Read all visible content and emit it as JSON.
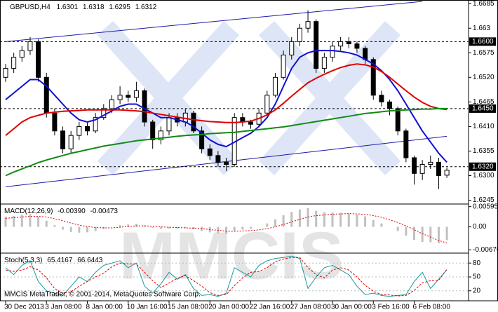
{
  "chart_data": [
    {
      "type": "candlestick",
      "title": "GBPUSD,H4",
      "watermark": "MMCIS",
      "categories": [
        "30 Dec 2013",
        null,
        null,
        null,
        null,
        "3 Jan 08:00",
        null,
        null,
        null,
        null,
        "8 Jan 00:00",
        null,
        null,
        null,
        null,
        "10 Jan 16:00",
        null,
        null,
        null,
        null,
        "15 Jan 08:00",
        null,
        null,
        null,
        null,
        "20 Jan 00:00",
        null,
        null,
        null,
        null,
        "22 Jan 16:00",
        null,
        null,
        null,
        null,
        "27 Jan 08:00",
        null,
        null,
        null,
        null,
        "30 Jan 00:00",
        null,
        null,
        null,
        null,
        "3 Feb 16:00",
        null,
        null,
        null,
        null,
        "6 Feb 08:00",
        null,
        null,
        null,
        null
      ],
      "open": [
        1.652,
        1.654,
        1.6565,
        1.658,
        1.66,
        1.652,
        1.644,
        1.64,
        1.636,
        1.639,
        1.641,
        1.64,
        1.643,
        1.645,
        1.647,
        1.648,
        1.6475,
        1.649,
        1.642,
        1.638,
        1.64,
        1.643,
        1.642,
        1.644,
        1.64,
        1.636,
        1.6345,
        1.633,
        1.6325,
        1.643,
        1.642,
        1.6415,
        1.644,
        1.648,
        1.652,
        1.657,
        1.66,
        1.663,
        1.6645,
        1.654,
        1.6565,
        1.659,
        1.66,
        1.6595,
        1.6585,
        1.656,
        1.648,
        1.6465,
        1.645,
        1.64,
        1.634,
        1.6305,
        1.6325,
        1.633,
        1.6301
      ],
      "high": [
        1.655,
        1.6575,
        1.659,
        1.661,
        1.6605,
        1.653,
        1.645,
        1.641,
        1.64,
        1.642,
        1.642,
        1.644,
        1.646,
        1.648,
        1.65,
        1.649,
        1.651,
        1.6495,
        1.6425,
        1.641,
        1.644,
        1.644,
        1.645,
        1.6445,
        1.641,
        1.637,
        1.6355,
        1.634,
        1.644,
        1.644,
        1.6425,
        1.645,
        1.649,
        1.653,
        1.658,
        1.661,
        1.664,
        1.667,
        1.665,
        1.6575,
        1.66,
        1.661,
        1.661,
        1.66,
        1.659,
        1.6565,
        1.649,
        1.647,
        1.6455,
        1.6405,
        1.6345,
        1.6335,
        1.6345,
        1.634,
        1.6318
      ],
      "low": [
        1.651,
        1.653,
        1.6555,
        1.657,
        1.651,
        1.643,
        1.639,
        1.635,
        1.635,
        1.638,
        1.639,
        1.6395,
        1.6425,
        1.644,
        1.646,
        1.6465,
        1.6465,
        1.641,
        1.636,
        1.637,
        1.639,
        1.641,
        1.641,
        1.6395,
        1.635,
        1.6335,
        1.632,
        1.631,
        1.632,
        1.641,
        1.6405,
        1.641,
        1.6435,
        1.6475,
        1.6515,
        1.656,
        1.659,
        1.662,
        1.653,
        1.653,
        1.6555,
        1.658,
        1.6585,
        1.6575,
        1.655,
        1.647,
        1.6455,
        1.6435,
        1.639,
        1.633,
        1.628,
        1.629,
        1.6315,
        1.627,
        1.6295
      ],
      "close": [
        1.654,
        1.6565,
        1.658,
        1.66,
        1.652,
        1.644,
        1.64,
        1.636,
        1.639,
        1.641,
        1.64,
        1.643,
        1.645,
        1.647,
        1.648,
        1.6475,
        1.649,
        1.642,
        1.638,
        1.64,
        1.643,
        1.642,
        1.644,
        1.64,
        1.636,
        1.6345,
        1.633,
        1.6325,
        1.643,
        1.642,
        1.6415,
        1.644,
        1.648,
        1.652,
        1.657,
        1.66,
        1.663,
        1.6645,
        1.654,
        1.6565,
        1.659,
        1.66,
        1.6595,
        1.6585,
        1.656,
        1.648,
        1.6465,
        1.645,
        1.64,
        1.634,
        1.6305,
        1.6325,
        1.633,
        1.63,
        1.6312
      ],
      "color_up": "#ffffff",
      "color_down": "#000000",
      "series": [
        {
          "color": "#1010d0",
          "values": [
            1.647,
            1.6485,
            1.65,
            1.6515,
            1.6515,
            1.65,
            1.648,
            1.646,
            1.644,
            1.6425,
            1.642,
            1.6425,
            1.6435,
            1.6445,
            1.6455,
            1.646,
            1.646,
            1.645,
            1.644,
            1.643,
            1.643,
            1.6425,
            1.642,
            1.641,
            1.6395,
            1.638,
            1.637,
            1.6365,
            1.6375,
            1.6385,
            1.6395,
            1.641,
            1.643,
            1.646,
            1.65,
            1.654,
            1.6565,
            1.6575,
            1.658,
            1.658,
            1.658,
            1.6578,
            1.6575,
            1.657,
            1.656,
            1.655,
            1.6535,
            1.6515,
            1.649,
            1.646,
            1.643,
            1.64,
            1.6375,
            1.635,
            1.633
          ]
        },
        {
          "color": "#e00000",
          "values": [
            1.639,
            1.6405,
            1.642,
            1.643,
            1.6435,
            1.644,
            1.6442,
            1.6444,
            1.6445,
            1.6446,
            1.6447,
            1.6447,
            1.6447,
            1.6447,
            1.6447,
            1.6446,
            1.6445,
            1.6443,
            1.644,
            1.6437,
            1.6434,
            1.6431,
            1.6428,
            1.6425,
            1.6423,
            1.6421,
            1.642,
            1.6419,
            1.6419,
            1.642,
            1.6422,
            1.6428,
            1.6436,
            1.6447,
            1.6462,
            1.6478,
            1.6493,
            1.6508,
            1.6518,
            1.6527,
            1.6535,
            1.6542,
            1.6547,
            1.655,
            1.6548,
            1.6543,
            1.6533,
            1.652,
            1.6505,
            1.649,
            1.6476,
            1.6464,
            1.6455,
            1.645,
            1.6448
          ]
        },
        {
          "color": "#138a13",
          "values": [
            1.63,
            1.6308,
            1.6315,
            1.6322,
            1.6329,
            1.6335,
            1.634,
            1.6345,
            1.635,
            1.6354,
            1.6358,
            1.6362,
            1.6366,
            1.6369,
            1.6372,
            1.6375,
            1.6378,
            1.638,
            1.6382,
            1.6384,
            1.6386,
            1.6388,
            1.639,
            1.6391,
            1.6392,
            1.6394,
            1.6395,
            1.6396,
            1.6397,
            1.6399,
            1.6401,
            1.6403,
            1.6405,
            1.6407,
            1.6409,
            1.6412,
            1.6415,
            1.6418,
            1.6421,
            1.6424,
            1.6427,
            1.643,
            1.6433,
            1.6436,
            1.6439,
            1.6441,
            1.6443,
            1.6445,
            1.6446,
            1.6447,
            1.6448,
            1.6449,
            1.6449,
            1.645,
            1.645
          ]
        }
      ],
      "levels": [
        {
          "value": 1.66,
          "label": "1.6600"
        },
        {
          "value": 1.645,
          "label": "1.6450"
        },
        {
          "value": 1.632,
          "label": "1.6320"
        }
      ],
      "trendlines": [
        {
          "color": "#1a1aa8",
          "x": [
            0,
            51
          ],
          "values": [
            1.66,
            1.669
          ]
        },
        {
          "color": "#1a1aa8",
          "x": [
            0,
            54
          ],
          "values": [
            1.6275,
            1.6388
          ]
        }
      ],
      "ylim": [
        1.6238,
        1.669
      ],
      "yticks": [
        1.6685,
        1.663,
        1.6575,
        {
          "value": 1.652,
          "label": "1.6520"
        },
        1.6465,
        {
          "value": 1.641,
          "label": "1.6410"
        },
        1.6355,
        {
          "value": 1.63,
          "label": "1.6300"
        },
        1.6245
      ]
    },
    {
      "type": "macd",
      "title": "MACD(12,26,9)",
      "series": [
        {
          "color": "#c0c0c0",
          "last_label": "-0.00390",
          "values": [
            0.003,
            0.0032,
            0.0035,
            0.0037,
            0.003,
            0.0018,
            0.0005,
            -0.0008,
            -0.0015,
            -0.0017,
            -0.0016,
            -0.0012,
            -0.0006,
            0.0,
            0.0005,
            0.0007,
            0.0009,
            0.0004,
            -0.0003,
            -0.0006,
            -0.0005,
            -0.0005,
            -0.0004,
            -0.0007,
            -0.0012,
            -0.0016,
            -0.0019,
            -0.0021,
            -0.0012,
            -0.0008,
            -0.0005,
            0.0,
            0.001,
            0.0022,
            0.0034,
            0.0044,
            0.0051,
            0.0055,
            0.0047,
            0.0043,
            0.0042,
            0.0041,
            0.0039,
            0.0036,
            0.0031,
            0.002,
            0.001,
            0.0,
            -0.0012,
            -0.0026,
            -0.0038,
            -0.0044,
            -0.0045,
            -0.0048,
            -0.0039
          ]
        },
        {
          "color": "#e00000",
          "last_label": "-0.00473",
          "values": [
            0.0025,
            0.0027,
            0.0029,
            0.0031,
            0.0031,
            0.0029,
            0.0024,
            0.0018,
            0.0011,
            0.0005,
            0.0001,
            -0.0002,
            -0.0003,
            -0.0003,
            -0.0001,
            0.0001,
            0.0003,
            0.0003,
            0.0002,
            0.0,
            -0.0001,
            -0.0002,
            -0.0003,
            -0.0004,
            -0.0005,
            -0.0008,
            -0.001,
            -0.0013,
            -0.0013,
            -0.0012,
            -0.0011,
            -0.0009,
            -0.0005,
            0.0,
            0.0007,
            0.0015,
            0.0022,
            0.0029,
            0.0033,
            0.0035,
            0.0037,
            0.0038,
            0.0039,
            0.0038,
            0.0037,
            0.0033,
            0.0028,
            0.0021,
            0.0013,
            0.0003,
            -0.0008,
            -0.002,
            -0.003,
            -0.004,
            -0.00473
          ]
        }
      ],
      "ylim": [
        -0.0075,
        0.0065
      ],
      "yticks": [
        0.00595,
        {
          "value": 0,
          "label": "0.00"
        },
        -0.00676
      ]
    },
    {
      "type": "stochastic",
      "title": "Stoch(5,3,3)",
      "footer": "MMCIS MetaTrader, © 2001-2014, MetaQuotes Software Corp.",
      "series": [
        {
          "color": "#1a9a9a",
          "values": [
            70,
            55,
            75,
            85,
            40,
            20,
            15,
            10,
            30,
            50,
            40,
            60,
            75,
            80,
            85,
            70,
            80,
            30,
            15,
            35,
            60,
            45,
            55,
            25,
            10,
            12,
            8,
            15,
            70,
            60,
            50,
            75,
            85,
            90,
            92,
            95,
            90,
            25,
            50,
            70,
            75,
            65,
            55,
            30,
            12,
            15,
            10,
            8,
            10,
            12,
            40,
            60,
            25,
            45,
            65.4167
          ]
        },
        {
          "color": "#e00000",
          "values": [
            65,
            62,
            65,
            72,
            65,
            48,
            25,
            15,
            18,
            30,
            40,
            50,
            58,
            72,
            80,
            78,
            78,
            60,
            42,
            27,
            37,
            47,
            53,
            42,
            30,
            16,
            10,
            12,
            31,
            48,
            60,
            62,
            70,
            83,
            89,
            92,
            92,
            70,
            55,
            48,
            65,
            70,
            65,
            50,
            32,
            19,
            12,
            11,
            9,
            10,
            21,
            37,
            42,
            43,
            66.6443
          ]
        }
      ],
      "ylim": [
        0,
        100
      ],
      "yticks": [
        80,
        50,
        20
      ]
    }
  ]
}
